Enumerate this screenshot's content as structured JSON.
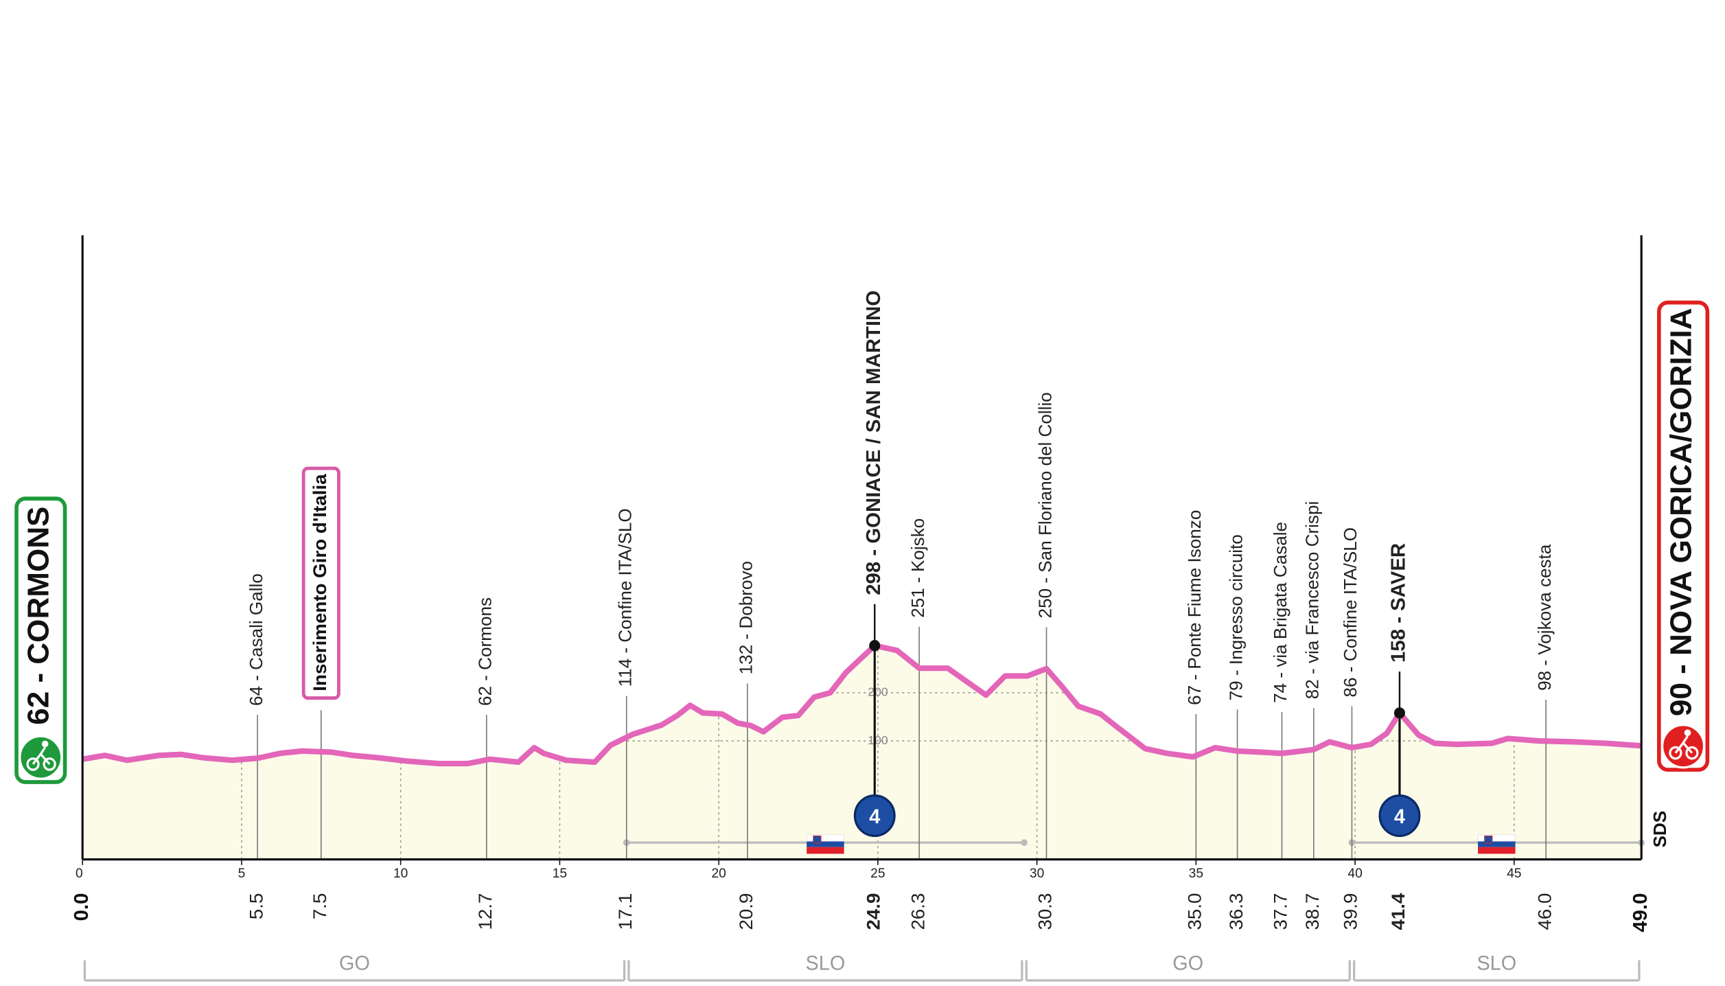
{
  "chart_data": {
    "type": "area",
    "x": [
      0,
      0.7,
      1.4,
      2.4,
      3.1,
      3.8,
      4.7,
      5.5,
      6.2,
      6.9,
      7.8,
      8.5,
      9.3,
      10.2,
      11.2,
      12.1,
      12.8,
      13.7,
      14.2,
      14.5,
      15.2,
      16.1,
      16.6,
      17.3,
      18.2,
      18.7,
      19.1,
      19.5,
      20.1,
      20.6,
      21.0,
      21.4,
      22.0,
      22.5,
      23.0,
      23.5,
      24.0,
      24.9,
      25.6,
      26.3,
      27.2,
      27.8,
      28.4,
      29.0,
      29.7,
      30.3,
      30.8,
      31.3,
      32.0,
      32.5,
      33.4,
      34.1,
      34.9,
      35.6,
      36.3,
      37.0,
      37.7,
      38.7,
      39.2,
      39.9,
      40.5,
      41.0,
      41.4,
      42.0,
      42.5,
      43.2,
      44.3,
      44.8,
      45.8,
      46.9,
      47.9,
      49.0
    ],
    "values": [
      62,
      70,
      60,
      70,
      72,
      65,
      60,
      64,
      74,
      79,
      77,
      70,
      65,
      58,
      53,
      53,
      62,
      56,
      86,
      74,
      60,
      56,
      91,
      114,
      133,
      153,
      174,
      158,
      156,
      137,
      132,
      119,
      149,
      153,
      191,
      200,
      242,
      298,
      288,
      251,
      251,
      223,
      195,
      235,
      235,
      250,
      212,
      172,
      156,
      130,
      84,
      74,
      67,
      86,
      79,
      77,
      74,
      82,
      98,
      86,
      93,
      116,
      158,
      112,
      95,
      93,
      95,
      105,
      100,
      98,
      95,
      90
    ],
    "color": "#e366b9",
    "fill": "#fbfbe8",
    "xlim": [
      0,
      49
    ],
    "xticks": [
      0,
      5,
      10,
      15,
      20,
      25,
      30,
      35,
      40,
      45
    ],
    "ylim": [
      -146,
      1150
    ],
    "yticks": [
      100,
      200
    ],
    "grid": true,
    "start": {
      "label": "62 - CORMONS",
      "km": {
        "value": 0,
        "label": "0.0"
      },
      "color": "#1e9a3c"
    },
    "finish": {
      "label": "90 - NOVA GORICA/GORIZIA",
      "km": {
        "value": 49,
        "label": "49.0"
      },
      "color": "#e02020"
    },
    "waypoints": [
      {
        "km": 5.5,
        "label": "64 - Casali Gallo"
      },
      {
        "km": 7.5,
        "label": "Inserimento Giro d'Italia",
        "highlight": true
      },
      {
        "km": 12.7,
        "label": "62 - Cormons"
      },
      {
        "km": 17.1,
        "label": "114 - Confine ITA/SLO"
      },
      {
        "km": 20.9,
        "label": "132 - Dobrovo"
      },
      {
        "km": 24.9,
        "label": "298 - GONIACE / SAN MARTINO",
        "climb": "4"
      },
      {
        "km": 26.3,
        "label": "251 - Kojsko"
      },
      {
        "km": 30.3,
        "label": "250 - San Floriano del Collio"
      },
      {
        "km": {
          "value": 35,
          "label": "35.0"
        },
        "label": "67 - Ponte Fiume Isonzo"
      },
      {
        "km": 36.3,
        "label": "79 - Ingresso circuito"
      },
      {
        "km": 37.7,
        "label": "74 - via Brigata Casale"
      },
      {
        "km": 38.7,
        "label": "82 - via Francesco Crispi"
      },
      {
        "km": 39.9,
        "label": "86 - Confine ITA/SLO"
      },
      {
        "km": 41.4,
        "label": "158 - SAVER",
        "climb": "4"
      },
      {
        "km": {
          "value": 46,
          "label": "46.0"
        },
        "label": "98 - Vojkova cesta"
      }
    ],
    "regions": [
      {
        "name": "GO",
        "from": 0,
        "to": 17.1
      },
      {
        "name": "SLO",
        "from": 17.1,
        "to": 29.6,
        "flag": true
      },
      {
        "name": "GO",
        "from": 29.6,
        "to": 39.9
      },
      {
        "name": "SLO",
        "from": 39.9,
        "to": 49,
        "flag": true
      }
    ],
    "logo": "SDS"
  }
}
